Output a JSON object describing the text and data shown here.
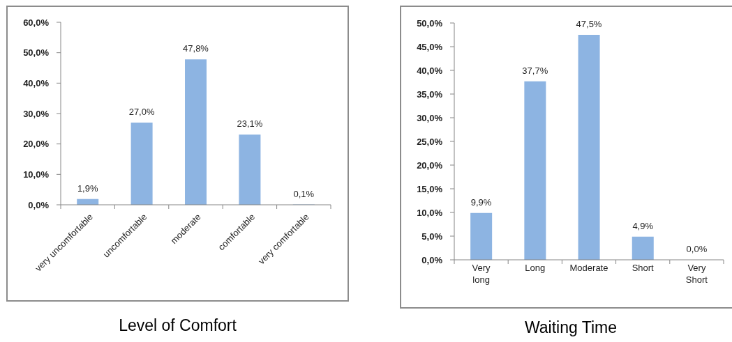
{
  "chart_data": [
    {
      "type": "bar",
      "title": "Level of Comfort",
      "categories": [
        "very uncomfortable",
        "uncomfortable",
        "moderate",
        "comfortable",
        "very comfortable"
      ],
      "values": [
        1.9,
        27.0,
        47.8,
        23.1,
        0.1
      ],
      "value_labels": [
        "1,9%",
        "27,0%",
        "47,8%",
        "23,1%",
        "0,1%"
      ],
      "color": "#8db4e2",
      "ylim": [
        0,
        60
      ],
      "yticks": [
        {
          "value": 0,
          "label": "0,0%"
        },
        {
          "value": 10,
          "label": "10,0%"
        },
        {
          "value": 20,
          "label": "20,0%"
        },
        {
          "value": 30,
          "label": "30,0%"
        },
        {
          "value": 40,
          "label": "40,0%"
        },
        {
          "value": 50,
          "label": "50,0%"
        },
        {
          "value": 60,
          "label": "60,0%"
        }
      ]
    },
    {
      "type": "bar",
      "title": "Waiting Time",
      "categories": [
        "Very long",
        "Long",
        "Moderate",
        "Short",
        "Very Short"
      ],
      "values": [
        9.9,
        37.7,
        47.5,
        4.9,
        0.0
      ],
      "value_labels": [
        "9,9%",
        "37,7%",
        "47,5%",
        "4,9%",
        "0,0%"
      ],
      "color": "#8db4e2",
      "ylim": [
        0,
        50
      ],
      "yticks": [
        {
          "value": 0,
          "label": "0,0%"
        },
        {
          "value": 5,
          "label": "5,0%"
        },
        {
          "value": 10,
          "label": "10,0%"
        },
        {
          "value": 15,
          "label": "15,0%"
        },
        {
          "value": 20,
          "label": "20,0%"
        },
        {
          "value": 25,
          "label": "25,0%"
        },
        {
          "value": 30,
          "label": "30,0%"
        },
        {
          "value": 35,
          "label": "35,0%"
        },
        {
          "value": 40,
          "label": "40,0%"
        },
        {
          "value": 45,
          "label": "45,0%"
        },
        {
          "value": 50,
          "label": "50,0%"
        }
      ]
    }
  ]
}
